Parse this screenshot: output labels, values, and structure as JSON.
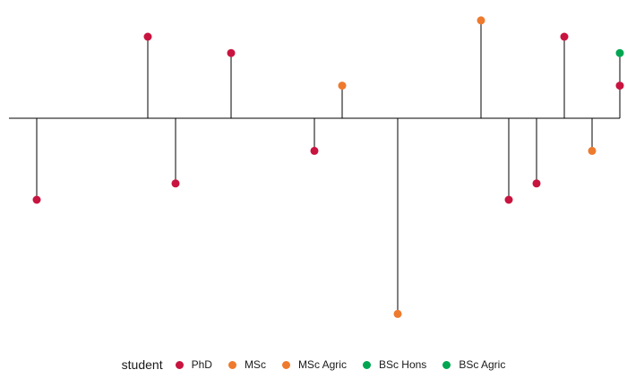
{
  "chart_data": {
    "type": "lollipop",
    "title": "",
    "xlabel": "",
    "ylabel": "",
    "baseline": 0,
    "ylim": [
      -1.45,
      0.65
    ],
    "x": [
      1,
      5,
      6,
      8,
      11,
      12,
      14,
      17,
      18,
      19,
      20,
      21,
      22,
      22
    ],
    "values": [
      -0.5,
      0.5,
      -0.4,
      0.4,
      -0.2,
      0.2,
      -1.2,
      0.6,
      -0.5,
      -0.4,
      0.5,
      -0.2,
      0.2,
      0.4
    ],
    "groups": [
      "PhD",
      "PhD",
      "PhD",
      "PhD",
      "PhD",
      "MSc",
      "MSc",
      "MSc",
      "PhD",
      "PhD",
      "PhD",
      "MSc",
      "PhD",
      "BSc Hons"
    ],
    "legend": {
      "title": "student",
      "position": "bottom",
      "entries": [
        {
          "label": "PhD",
          "color": "#c8143f"
        },
        {
          "label": "MSc",
          "color": "#ee7a2e"
        },
        {
          "label": "MSc Agric",
          "color": "#ee7a2e"
        },
        {
          "label": "BSc Hons",
          "color": "#00a651"
        },
        {
          "label": "BSc Agric",
          "color": "#00a651"
        }
      ]
    },
    "colors": {
      "PhD": "#c8143f",
      "MSc": "#ee7a2e",
      "MSc Agric": "#ee7a2e",
      "BSc Hons": "#00a651",
      "BSc Agric": "#00a651"
    },
    "grid": false
  }
}
